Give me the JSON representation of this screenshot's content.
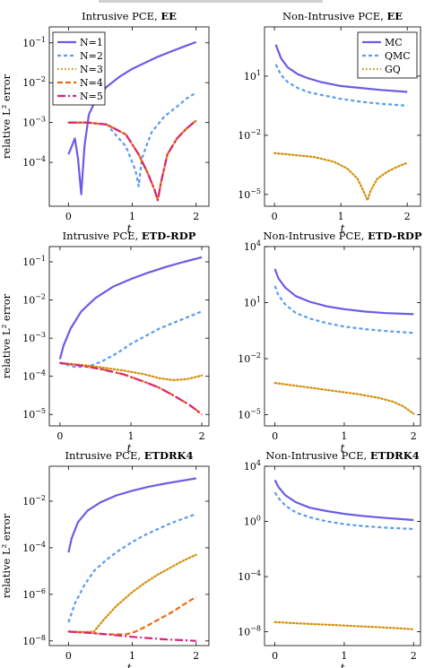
{
  "colors": {
    "N1": "#6b5ce7",
    "N2": "#5b9cf0",
    "N3": "#d4900a",
    "N4": "#ee6a10",
    "N5": "#d8247a",
    "MC": "#6b5ce7",
    "QMC": "#5b9cf0",
    "GQ": "#d4900a"
  },
  "chart_data": [
    {
      "id": "intrusive_ee",
      "type": "line",
      "title": "Intrusive PCE, ",
      "title_bold": "EE",
      "ylabel": "relative L² error",
      "xlabel": "t",
      "xlim": [
        -0.3,
        2.2
      ],
      "ylog": true,
      "ylim_log": [
        -5.1,
        -0.6
      ],
      "yticks": [
        {
          "v": -1,
          "base": "10",
          "exp": "−1"
        },
        {
          "v": -2,
          "base": "10",
          "exp": "−2"
        },
        {
          "v": -3,
          "base": "10",
          "exp": "−3"
        },
        {
          "v": -4,
          "base": "10",
          "exp": "−4"
        }
      ],
      "xticks": [
        {
          "v": 0,
          "label": "0"
        },
        {
          "v": 1,
          "label": "1"
        },
        {
          "v": 2,
          "label": "2"
        }
      ],
      "legend": {
        "position": "top-left",
        "entries": [
          {
            "name": "N=1",
            "color": "#6b5ce7",
            "dash": ""
          },
          {
            "name": "N=2",
            "color": "#5b9cf0",
            "dash": "4,3"
          },
          {
            "name": "N=3",
            "color": "#d4900a",
            "dash": "1.5,2.5"
          },
          {
            "name": "N=4",
            "color": "#ee6a10",
            "dash": "6,3"
          },
          {
            "name": "N=5",
            "color": "#d8247a",
            "dash": "9,3,2,3"
          }
        ]
      },
      "series": [
        {
          "name": "N=1",
          "color": "#6b5ce7",
          "dash": "",
          "x": [
            0,
            0.1,
            0.15,
            0.2,
            0.25,
            0.32,
            0.45,
            0.6,
            0.8,
            1.0,
            1.2,
            1.4,
            1.6,
            1.8,
            2.0
          ],
          "y": [
            -3.8,
            -3.4,
            -3.9,
            -4.8,
            -3.6,
            -2.8,
            -2.35,
            -2.1,
            -1.85,
            -1.65,
            -1.5,
            -1.35,
            -1.22,
            -1.1,
            -0.98
          ]
        },
        {
          "name": "N=2",
          "color": "#5b9cf0",
          "dash": "4,3",
          "x": [
            0,
            0.3,
            0.6,
            0.9,
            1.05,
            1.1,
            1.15,
            1.3,
            1.5,
            1.7,
            1.85,
            2.0
          ],
          "y": [
            -3.0,
            -3.0,
            -3.05,
            -3.6,
            -4.2,
            -4.6,
            -3.9,
            -3.25,
            -2.85,
            -2.6,
            -2.4,
            -2.25
          ]
        },
        {
          "name": "N=3",
          "color": "#d4900a",
          "dash": "1.5,2.5",
          "x": [
            0,
            0.3,
            0.6,
            0.9,
            1.1,
            1.25,
            1.35,
            1.4,
            1.45,
            1.55,
            1.7,
            1.85,
            2.0
          ],
          "y": [
            -3.0,
            -3.0,
            -3.05,
            -3.3,
            -3.8,
            -4.3,
            -4.7,
            -4.95,
            -4.5,
            -3.8,
            -3.4,
            -3.15,
            -2.95
          ]
        },
        {
          "name": "N=4",
          "color": "#ee6a10",
          "dash": "6,3",
          "x": [
            0,
            0.3,
            0.6,
            0.9,
            1.1,
            1.25,
            1.35,
            1.4,
            1.45,
            1.55,
            1.7,
            1.85,
            2.0
          ],
          "y": [
            -3.0,
            -3.0,
            -3.05,
            -3.3,
            -3.8,
            -4.3,
            -4.7,
            -4.95,
            -4.5,
            -3.8,
            -3.4,
            -3.15,
            -2.95
          ]
        },
        {
          "name": "N=5",
          "color": "#d8247a",
          "dash": "9,3,2,3",
          "x": [
            0,
            0.3,
            0.6,
            0.9,
            1.1,
            1.25,
            1.35,
            1.4,
            1.45,
            1.55,
            1.7,
            1.85,
            2.0
          ],
          "y": [
            -3.0,
            -3.0,
            -3.05,
            -3.3,
            -3.8,
            -4.3,
            -4.7,
            -4.95,
            -4.5,
            -3.8,
            -3.4,
            -3.15,
            -2.95
          ]
        }
      ]
    },
    {
      "id": "nonintrusive_ee",
      "type": "line",
      "title": "Non-Intrusive PCE, ",
      "title_bold": "EE",
      "ylabel": "",
      "xlabel": "t",
      "xlim": [
        -0.15,
        2.2
      ],
      "ylog": true,
      "ylim_log": [
        -5.6,
        3.5
      ],
      "yticks": [
        {
          "v": 1,
          "base": "10",
          "exp": "1"
        },
        {
          "v": -2,
          "base": "10",
          "exp": "−2"
        },
        {
          "v": -5,
          "base": "10",
          "exp": "−5"
        }
      ],
      "xticks": [
        {
          "v": 0,
          "label": "0"
        },
        {
          "v": 1,
          "label": "1"
        },
        {
          "v": 2,
          "label": "2"
        }
      ],
      "legend": {
        "position": "top-right",
        "entries": [
          {
            "name": "MC",
            "color": "#6b5ce7",
            "dash": ""
          },
          {
            "name": "QMC",
            "color": "#5b9cf0",
            "dash": "4,3"
          },
          {
            "name": "GQ",
            "color": "#d4900a",
            "dash": "1.5,2.5"
          }
        ]
      },
      "series": [
        {
          "name": "MC",
          "color": "#6b5ce7",
          "dash": "",
          "x": [
            0.02,
            0.1,
            0.2,
            0.35,
            0.5,
            0.7,
            1.0,
            1.3,
            1.6,
            2.0
          ],
          "y": [
            2.6,
            1.9,
            1.45,
            1.1,
            0.9,
            0.7,
            0.5,
            0.4,
            0.3,
            0.2
          ]
        },
        {
          "name": "QMC",
          "color": "#5b9cf0",
          "dash": "4,3",
          "x": [
            0.02,
            0.1,
            0.2,
            0.35,
            0.5,
            0.7,
            1.0,
            1.3,
            1.6,
            2.0
          ],
          "y": [
            1.6,
            1.05,
            0.7,
            0.4,
            0.2,
            0.05,
            -0.15,
            -0.3,
            -0.4,
            -0.5
          ]
        },
        {
          "name": "GQ",
          "color": "#d4900a",
          "dash": "1.5,2.5",
          "x": [
            0,
            0.3,
            0.6,
            0.9,
            1.1,
            1.25,
            1.35,
            1.4,
            1.45,
            1.55,
            1.7,
            1.85,
            2.0
          ],
          "y": [
            -2.9,
            -3.0,
            -3.1,
            -3.35,
            -3.7,
            -4.2,
            -4.9,
            -5.3,
            -4.8,
            -4.2,
            -3.85,
            -3.6,
            -3.4
          ]
        }
      ]
    },
    {
      "id": "intrusive_etdrdp",
      "type": "line",
      "title": "Intrusive PCE, ",
      "title_bold": "ETD-RDP",
      "ylabel": "relative L² error",
      "xlabel": "t",
      "xlim": [
        -0.15,
        2.1
      ],
      "ylog": true,
      "ylim_log": [
        -5.3,
        -0.6
      ],
      "yticks": [
        {
          "v": -1,
          "base": "10",
          "exp": "−1"
        },
        {
          "v": -2,
          "base": "10",
          "exp": "−2"
        },
        {
          "v": -3,
          "base": "10",
          "exp": "−3"
        },
        {
          "v": -4,
          "base": "10",
          "exp": "−4"
        },
        {
          "v": -5,
          "base": "10",
          "exp": "−5"
        }
      ],
      "xticks": [
        {
          "v": 0,
          "label": "0"
        },
        {
          "v": 1,
          "label": "1"
        },
        {
          "v": 2,
          "label": "2"
        }
      ],
      "series": [
        {
          "name": "N=1",
          "color": "#6b5ce7",
          "dash": "",
          "x": [
            0,
            0.05,
            0.15,
            0.3,
            0.5,
            0.75,
            1.0,
            1.25,
            1.5,
            1.75,
            2.0
          ],
          "y": [
            -3.55,
            -3.2,
            -2.75,
            -2.3,
            -1.95,
            -1.65,
            -1.45,
            -1.28,
            -1.13,
            -1.0,
            -0.88
          ]
        },
        {
          "name": "N=2",
          "color": "#5b9cf0",
          "dash": "4,3",
          "x": [
            0,
            0.2,
            0.4,
            0.6,
            0.8,
            1.0,
            1.2,
            1.4,
            1.6,
            1.8,
            2.0
          ],
          "y": [
            -3.65,
            -3.75,
            -3.75,
            -3.6,
            -3.4,
            -3.15,
            -2.95,
            -2.75,
            -2.6,
            -2.45,
            -2.3
          ]
        },
        {
          "name": "N=3",
          "color": "#d4900a",
          "dash": "1.5,2.5",
          "x": [
            0,
            0.3,
            0.6,
            0.9,
            1.2,
            1.4,
            1.6,
            1.8,
            2.0
          ],
          "y": [
            -3.65,
            -3.7,
            -3.77,
            -3.85,
            -3.95,
            -4.05,
            -4.1,
            -4.07,
            -3.98
          ]
        },
        {
          "name": "N=4",
          "color": "#ee6a10",
          "dash": "6,3",
          "x": [
            0,
            0.3,
            0.6,
            0.9,
            1.2,
            1.4,
            1.6,
            1.8,
            1.9,
            2.0
          ],
          "y": [
            -3.65,
            -3.72,
            -3.82,
            -3.95,
            -4.15,
            -4.3,
            -4.5,
            -4.72,
            -4.85,
            -5.0
          ]
        },
        {
          "name": "N=5",
          "color": "#d8247a",
          "dash": "9,3,2,3",
          "x": [
            0,
            0.3,
            0.6,
            0.9,
            1.2,
            1.4,
            1.6,
            1.8,
            1.9,
            2.0
          ],
          "y": [
            -3.65,
            -3.72,
            -3.82,
            -3.95,
            -4.15,
            -4.3,
            -4.5,
            -4.72,
            -4.85,
            -5.0
          ]
        }
      ]
    },
    {
      "id": "nonintrusive_etdrdp",
      "type": "line",
      "title": "Non-Intrusive PCE, ",
      "title_bold": "ETD-RDP",
      "ylabel": "",
      "xlabel": "t",
      "xlim": [
        -0.15,
        2.1
      ],
      "ylog": true,
      "ylim_log": [
        -5.6,
        4.0
      ],
      "yticks": [
        {
          "v": 4,
          "base": "10",
          "exp": "4"
        },
        {
          "v": 1,
          "base": "10",
          "exp": "1"
        },
        {
          "v": -2,
          "base": "10",
          "exp": "−2"
        },
        {
          "v": -5,
          "base": "10",
          "exp": "−5"
        }
      ],
      "xticks": [
        {
          "v": 0,
          "label": "0"
        },
        {
          "v": 1,
          "label": "1"
        },
        {
          "v": 2,
          "label": "2"
        }
      ],
      "series": [
        {
          "name": "MC",
          "color": "#6b5ce7",
          "dash": "",
          "x": [
            0,
            0.05,
            0.15,
            0.3,
            0.5,
            0.75,
            1.0,
            1.3,
            1.6,
            2.0
          ],
          "y": [
            2.8,
            2.3,
            1.8,
            1.35,
            1.05,
            0.8,
            0.65,
            0.52,
            0.44,
            0.38
          ]
        },
        {
          "name": "QMC",
          "color": "#5b9cf0",
          "dash": "4,3",
          "x": [
            0,
            0.05,
            0.15,
            0.3,
            0.5,
            0.75,
            1.0,
            1.3,
            1.6,
            2.0
          ],
          "y": [
            1.9,
            1.4,
            0.9,
            0.45,
            0.15,
            -0.1,
            -0.28,
            -0.42,
            -0.52,
            -0.62
          ]
        },
        {
          "name": "GQ",
          "color": "#d4900a",
          "dash": "1.5,2.5",
          "x": [
            0,
            0.3,
            0.6,
            0.9,
            1.2,
            1.5,
            1.7,
            1.85,
            2.0
          ],
          "y": [
            -3.3,
            -3.45,
            -3.6,
            -3.75,
            -3.9,
            -4.1,
            -4.3,
            -4.55,
            -4.95
          ]
        }
      ]
    },
    {
      "id": "intrusive_etdrk4",
      "type": "line",
      "title": "Intrusive PCE, ",
      "title_bold": "ETDRK4",
      "ylabel": "relative L² error",
      "xlabel": "t",
      "xlim": [
        -0.3,
        2.2
      ],
      "ylog": true,
      "ylim_log": [
        -8.2,
        -0.5
      ],
      "yticks": [
        {
          "v": -2,
          "base": "10",
          "exp": "−2"
        },
        {
          "v": -4,
          "base": "10",
          "exp": "−4"
        },
        {
          "v": -6,
          "base": "10",
          "exp": "−6"
        },
        {
          "v": -8,
          "base": "10",
          "exp": "−8"
        }
      ],
      "xticks": [
        {
          "v": 0,
          "label": "0"
        },
        {
          "v": 1,
          "label": "1"
        },
        {
          "v": 2,
          "label": "2"
        }
      ],
      "series": [
        {
          "name": "N=1",
          "color": "#6b5ce7",
          "dash": "",
          "x": [
            0,
            0.05,
            0.15,
            0.3,
            0.5,
            0.75,
            1.0,
            1.25,
            1.5,
            1.75,
            2.0
          ],
          "y": [
            -4.2,
            -3.6,
            -2.9,
            -2.4,
            -2.05,
            -1.75,
            -1.55,
            -1.38,
            -1.25,
            -1.13,
            -1.02
          ]
        },
        {
          "name": "N=2",
          "color": "#5b9cf0",
          "dash": "4,3",
          "x": [
            0,
            0.1,
            0.25,
            0.4,
            0.6,
            0.8,
            1.0,
            1.2,
            1.4,
            1.6,
            1.8,
            2.0
          ],
          "y": [
            -7.2,
            -6.4,
            -5.6,
            -5.0,
            -4.5,
            -4.1,
            -3.75,
            -3.45,
            -3.2,
            -2.95,
            -2.75,
            -2.55
          ]
        },
        {
          "name": "N=3",
          "color": "#d4900a",
          "dash": "1.5,2.5",
          "x": [
            0,
            0.25,
            0.4,
            0.55,
            0.75,
            1.0,
            1.2,
            1.4,
            1.6,
            1.8,
            2.0
          ],
          "y": [
            -7.6,
            -7.62,
            -7.6,
            -7.1,
            -6.5,
            -5.9,
            -5.5,
            -5.15,
            -4.85,
            -4.55,
            -4.3
          ]
        },
        {
          "name": "N=4",
          "color": "#ee6a10",
          "dash": "6,3",
          "x": [
            0,
            0.3,
            0.6,
            0.9,
            1.05,
            1.2,
            1.4,
            1.6,
            1.8,
            2.0
          ],
          "y": [
            -7.6,
            -7.65,
            -7.72,
            -7.72,
            -7.6,
            -7.4,
            -7.1,
            -6.8,
            -6.45,
            -6.1
          ]
        },
        {
          "name": "N=5",
          "color": "#d8247a",
          "dash": "9,3,2,3",
          "x": [
            0,
            0.3,
            0.6,
            0.9,
            1.2,
            1.5,
            1.8,
            2.0
          ],
          "y": [
            -7.6,
            -7.65,
            -7.72,
            -7.8,
            -7.87,
            -7.93,
            -7.97,
            -8.0
          ]
        }
      ]
    },
    {
      "id": "nonintrusive_etdrk4",
      "type": "line",
      "title": "Non-Intrusive PCE, ",
      "title_bold": "ETDRK4",
      "ylabel": "",
      "xlabel": "t",
      "xlim": [
        -0.15,
        2.1
      ],
      "ylog": true,
      "ylim_log": [
        -9.0,
        4.0
      ],
      "yticks": [
        {
          "v": 4,
          "base": "10",
          "exp": "4"
        },
        {
          "v": 0,
          "base": "10",
          "exp": "0"
        },
        {
          "v": -4,
          "base": "10",
          "exp": "−4"
        },
        {
          "v": -8,
          "base": "10",
          "exp": "−8"
        }
      ],
      "xticks": [
        {
          "v": 0,
          "label": "0"
        },
        {
          "v": 1,
          "label": "1"
        },
        {
          "v": 2,
          "label": "2"
        }
      ],
      "series": [
        {
          "name": "MC",
          "color": "#6b5ce7",
          "dash": "",
          "x": [
            0,
            0.05,
            0.15,
            0.3,
            0.5,
            0.75,
            1.0,
            1.3,
            1.6,
            2.0
          ],
          "y": [
            3.0,
            2.5,
            1.9,
            1.4,
            1.0,
            0.75,
            0.55,
            0.38,
            0.25,
            0.1
          ]
        },
        {
          "name": "QMC",
          "color": "#5b9cf0",
          "dash": "4,3",
          "x": [
            0,
            0.05,
            0.15,
            0.3,
            0.5,
            0.75,
            1.0,
            1.3,
            1.6,
            2.0
          ],
          "y": [
            2.1,
            1.7,
            1.15,
            0.65,
            0.3,
            0.0,
            -0.2,
            -0.35,
            -0.45,
            -0.55
          ]
        },
        {
          "name": "GQ",
          "color": "#d4900a",
          "dash": "1.5,2.5",
          "x": [
            0,
            0.3,
            0.6,
            0.9,
            1.2,
            1.5,
            1.8,
            2.0
          ],
          "y": [
            -7.3,
            -7.38,
            -7.45,
            -7.52,
            -7.6,
            -7.67,
            -7.75,
            -7.82
          ]
        }
      ]
    }
  ]
}
